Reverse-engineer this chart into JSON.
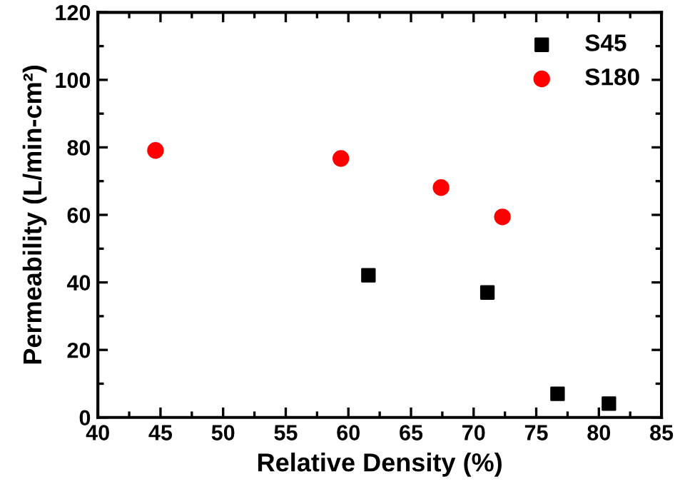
{
  "chart_data": {
    "type": "scatter",
    "xlabel": "Relative Density (%)",
    "ylabel": "Permeability (L/min-cm²)",
    "xlim": [
      40,
      85
    ],
    "xticks": [
      40,
      45,
      50,
      55,
      60,
      65,
      70,
      75,
      80,
      85
    ],
    "ylim": [
      0,
      120
    ],
    "yticks": [
      0,
      20,
      40,
      60,
      80,
      100,
      120
    ],
    "legend": "top right",
    "grid": false,
    "series": [
      {
        "name": "S45",
        "color": "#000000",
        "marker": "square",
        "x": [
          61.6,
          71.1,
          76.7,
          80.8
        ],
        "values": [
          42.1,
          37.0,
          7.0,
          4.1
        ]
      },
      {
        "name": "S180",
        "color": "#ff0000",
        "marker": "circle",
        "x": [
          44.6,
          59.4,
          67.4,
          72.3
        ],
        "values": [
          79.1,
          76.7,
          68.1,
          59.4
        ]
      }
    ]
  }
}
